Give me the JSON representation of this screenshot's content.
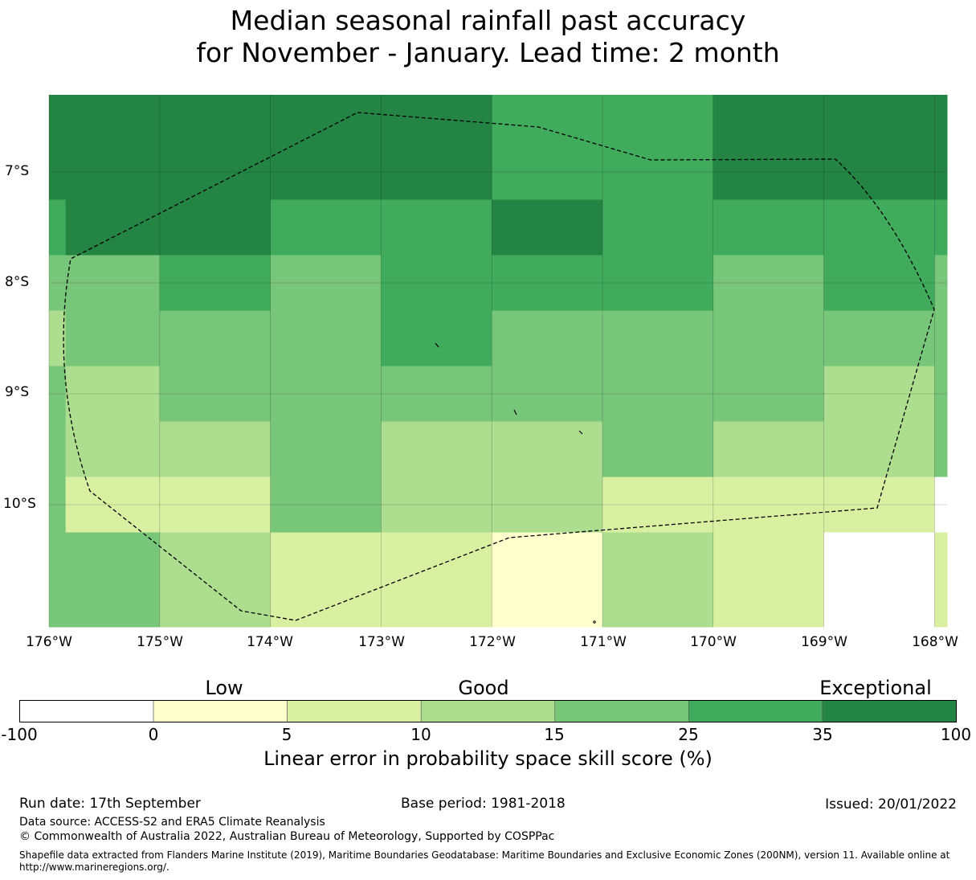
{
  "title": {
    "line1": "Median seasonal rainfall past accuracy",
    "line2": "for November - January. Lead time: 2 month"
  },
  "map": {
    "lat_labels": [
      "7°S",
      "8°S",
      "9°S",
      "10°S"
    ],
    "lon_labels": [
      "176°W",
      "175°W",
      "174°W",
      "173°W",
      "172°W",
      "171°W",
      "170°W",
      "169°W",
      "168°W"
    ],
    "column_bounds_deg_w": [
      175.85,
      175.0,
      174.0,
      173.0,
      172.0,
      171.0,
      170.0,
      169.0,
      168.0
    ],
    "row_bounds_deg_s": [
      6.5,
      7.25,
      7.75,
      8.25,
      8.75,
      9.25,
      9.75,
      10.25,
      10.75
    ],
    "skill_category_grid": [
      [
        6,
        6,
        6,
        6,
        6,
        5,
        5,
        6,
        6,
        6
      ],
      [
        5,
        6,
        6,
        5,
        5,
        6,
        5,
        5,
        5,
        5
      ],
      [
        4,
        4,
        5,
        4,
        5,
        5,
        5,
        4,
        5,
        4
      ],
      [
        3,
        4,
        4,
        4,
        5,
        4,
        4,
        4,
        4,
        4
      ],
      [
        4,
        3,
        4,
        4,
        4,
        4,
        4,
        4,
        3,
        4
      ],
      [
        4,
        3,
        3,
        4,
        3,
        3,
        4,
        3,
        3,
        4
      ],
      [
        4,
        2,
        2,
        4,
        3,
        3,
        2,
        2,
        2,
        0
      ],
      [
        4,
        4,
        3,
        2,
        2,
        1,
        3,
        2,
        0,
        2
      ]
    ]
  },
  "colorbar": {
    "category_labels": [
      "Low",
      "Good",
      "Exceptional"
    ],
    "ticks": [
      "-100",
      "0",
      "5",
      "10",
      "15",
      "25",
      "35",
      "100"
    ],
    "colors": [
      "#ffffff",
      "#ffffcc",
      "#d9f0a3",
      "#addd8e",
      "#78c679",
      "#41ab5d",
      "#238443"
    ],
    "label": "Linear error in probability space skill score (%)"
  },
  "footer": {
    "run_date": "Run date: 17th September",
    "base_period": "Base period: 1981-2018",
    "issued": "Issued: 20/01/2022",
    "data_source": "Data source: ACCESS-S2 and ERA5 Climate Reanalysis",
    "copyright": "© Commonwealth of Australia 2022, Australian Bureau of Meteorology, Supported by COSPPac",
    "shapefile": "Shapefile data extracted from Flanders Marine Institute (2019), Maritime Boundaries Geodatabase: Maritime Boundaries and Exclusive Economic Zones (200NM), version 11. Available online at http://www.marineregions.org/."
  }
}
